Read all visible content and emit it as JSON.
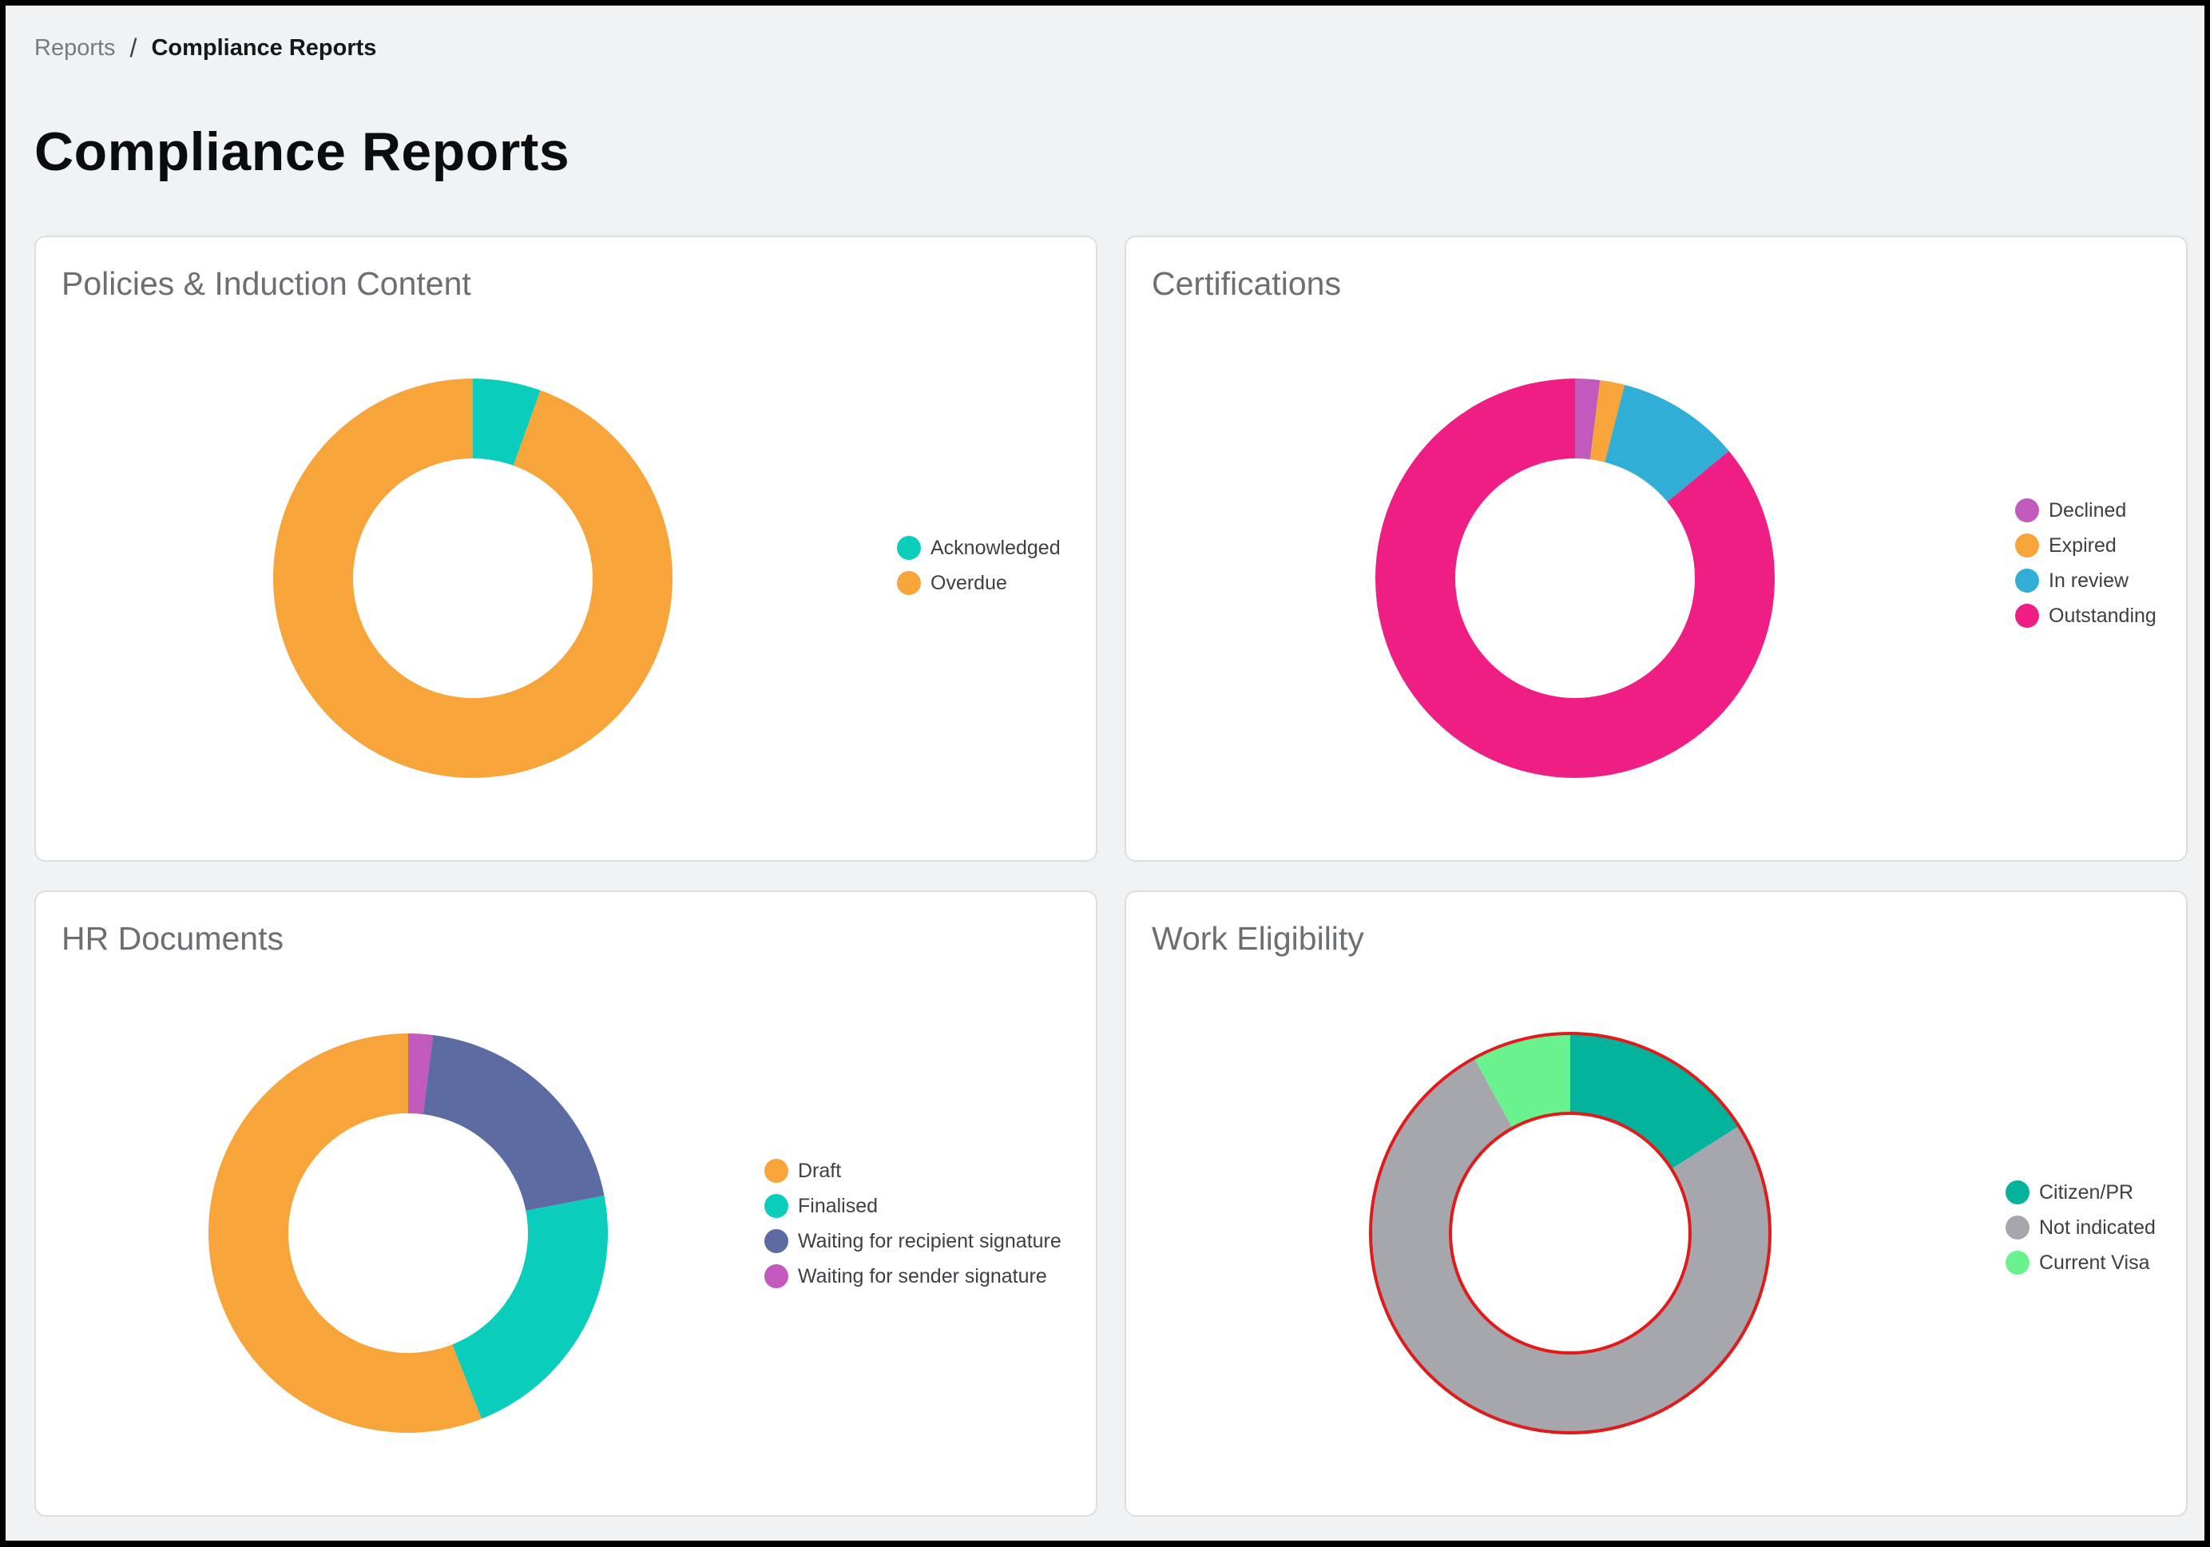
{
  "breadcrumb": {
    "parent": "Reports",
    "separator": "/",
    "current": "Compliance Reports"
  },
  "page_title": "Compliance Reports",
  "chart_data": [
    {
      "type": "pie",
      "title": "Policies & Induction Content",
      "donut": true,
      "categories": [
        "Acknowledged",
        "Overdue"
      ],
      "values": [
        5.5,
        94.5
      ],
      "colors": [
        "#0acdbb",
        "#f7a43b"
      ],
      "legend_position": "right"
    },
    {
      "type": "pie",
      "title": "Certifications",
      "donut": true,
      "categories": [
        "Declined",
        "Expired",
        "In review",
        "Outstanding"
      ],
      "values": [
        2,
        2,
        10,
        86
      ],
      "colors": [
        "#c259bd",
        "#f7a43b",
        "#30aed6",
        "#ee1e84"
      ],
      "legend_position": "right"
    },
    {
      "type": "pie",
      "title": "HR Documents",
      "donut": true,
      "categories": [
        "Draft",
        "Finalised",
        "Waiting for recipient signature",
        "Waiting for sender signature"
      ],
      "values": [
        56,
        22,
        20,
        2
      ],
      "colors": [
        "#f7a43b",
        "#0acdbb",
        "#5c6ba1",
        "#c259bd"
      ],
      "slice_order": [
        3,
        2,
        1,
        0
      ],
      "legend_position": "right"
    },
    {
      "type": "pie",
      "title": "Work Eligibility",
      "donut": true,
      "categories": [
        "Citizen/PR",
        "Not indicated",
        "Current Visa"
      ],
      "values": [
        16,
        76,
        8
      ],
      "colors": [
        "#03b39b",
        "#a5a7ad",
        "#6af28e"
      ],
      "highlight": "#e01b1b",
      "legend_position": "right"
    }
  ]
}
